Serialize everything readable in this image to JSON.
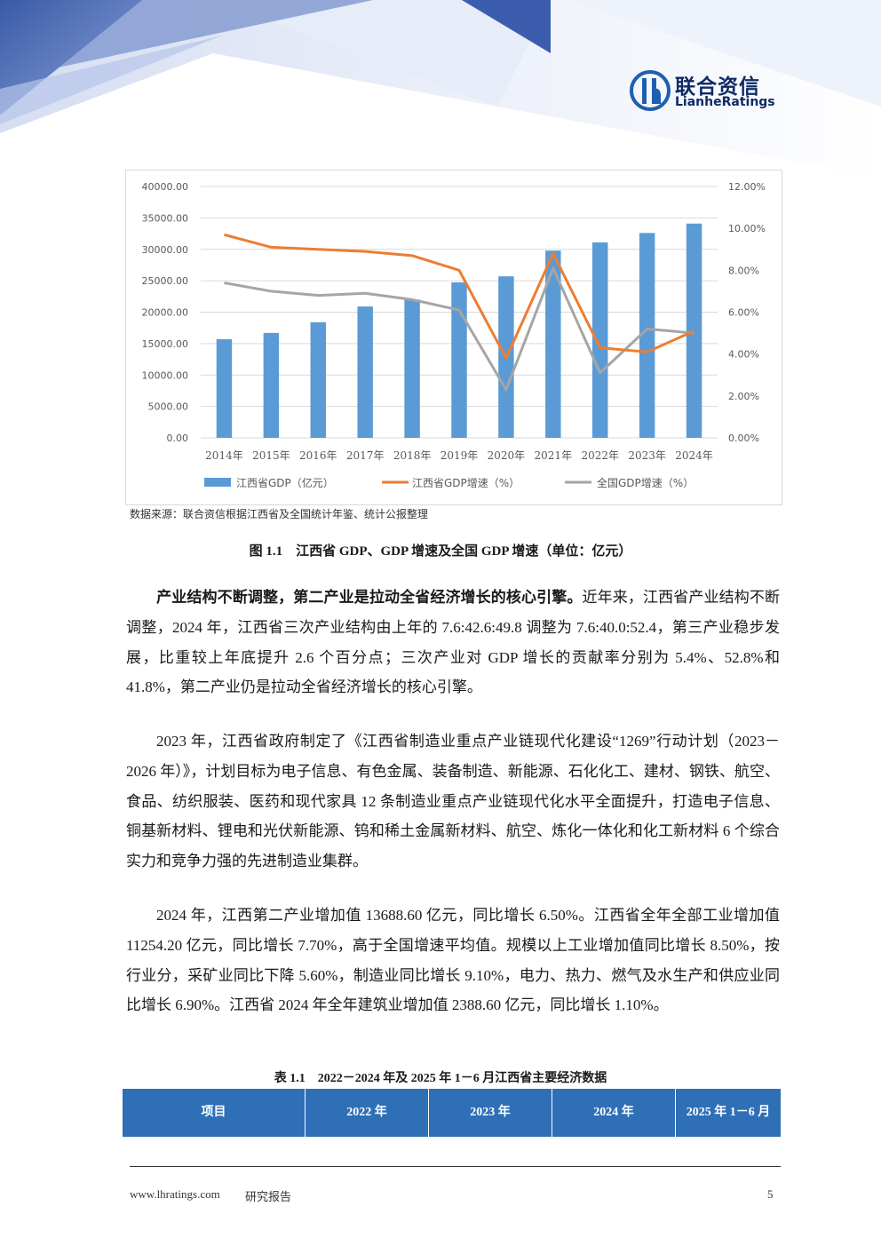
{
  "header": {
    "logo_cn": "联合资信",
    "logo_en": "LianheRatings"
  },
  "chart_data": {
    "type": "bar",
    "categories": [
      "2014年",
      "2015年",
      "2016年",
      "2017年",
      "2018年",
      "2019年",
      "2020年",
      "2021年",
      "2022年",
      "2023年",
      "2024年"
    ],
    "series": [
      {
        "name": "江西省GDP（亿元）",
        "type": "bar",
        "axis": "left",
        "values": [
          15700,
          16700,
          18400,
          20900,
          22000,
          24750,
          25700,
          29800,
          31100,
          32600,
          34100
        ]
      },
      {
        "name": "江西省GDP增速（%）",
        "type": "line",
        "axis": "right",
        "values": [
          9.7,
          9.1,
          9.0,
          8.9,
          8.7,
          8.0,
          3.8,
          8.8,
          4.3,
          4.1,
          5.1
        ]
      },
      {
        "name": "全国GDP增速（%）",
        "type": "line",
        "axis": "right",
        "values": [
          7.4,
          7.0,
          6.8,
          6.9,
          6.6,
          6.1,
          2.3,
          8.1,
          3.1,
          5.2,
          5.0
        ]
      }
    ],
    "y_left": {
      "min": 0,
      "max": 40000,
      "ticks": [
        "0.00",
        "5000.00",
        "10000.00",
        "15000.00",
        "20000.00",
        "25000.00",
        "30000.00",
        "35000.00",
        "40000.00"
      ]
    },
    "y_right": {
      "min": 0,
      "max": 12,
      "ticks": [
        "0.00%",
        "2.00%",
        "4.00%",
        "6.00%",
        "8.00%",
        "10.00%",
        "12.00%"
      ]
    },
    "legend_position": "bottom",
    "colors": {
      "bar": "#5b9bd5",
      "line_jx": "#ed7d31",
      "line_cn": "#a5a5a5",
      "grid": "#d9d9d9"
    }
  },
  "source_note": "数据来源：联合资信根据江西省及全国统计年鉴、统计公报整理",
  "figure_caption": "图 1.1　江西省 GDP、GDP 增速及全国 GDP 增速（单位：亿元）",
  "paragraphs": {
    "p1_lead": "产业结构不断调整，第二产业是拉动全省经济增长的核心引擎。",
    "p1_body": "近年来，江西省产业结构不断调整，2024 年，江西省三次产业结构由上年的 7.6:42.6:49.8 调整为 7.6:40.0:52.4，第三产业稳步发展，比重较上年底提升 2.6 个百分点；三次产业对 GDP 增长的贡献率分别为 5.4%、52.8%和 41.8%，第二产业仍是拉动全省经济增长的核心引擎。",
    "p2": "2023 年，江西省政府制定了《江西省制造业重点产业链现代化建设“1269”行动计划（2023－2026 年）》，计划目标为电子信息、有色金属、装备制造、新能源、石化化工、建材、钢铁、航空、食品、纺织服装、医药和现代家具 12 条制造业重点产业链现代化水平全面提升，打造电子信息、铜基新材料、锂电和光伏新能源、钨和稀土金属新材料、航空、炼化一体化和化工新材料 6 个综合实力和竞争力强的先进制造业集群。",
    "p3": "2024 年，江西第二产业增加值 13688.60 亿元，同比增长 6.50%。江西省全年全部工业增加值 11254.20 亿元，同比增长 7.70%，高于全国增速平均值。规模以上工业增加值同比增长 8.50%，按行业分，采矿业同比下降 5.60%，制造业同比增长 9.10%，电力、热力、燃气及水生产和供应业同比增长 6.90%。江西省 2024 年全年建筑业增加值 2388.60 亿元，同比增长 1.10%。"
  },
  "table": {
    "caption": "表 1.1　2022－2024 年及 2025 年 1－6 月江西省主要经济数据",
    "headers": [
      "项目",
      "2022 年",
      "2023 年",
      "2024 年",
      "2025 年 1－6 月"
    ]
  },
  "footer": {
    "website": "www.lhratings.com",
    "report_type": "研究报告",
    "page_number": "5"
  }
}
